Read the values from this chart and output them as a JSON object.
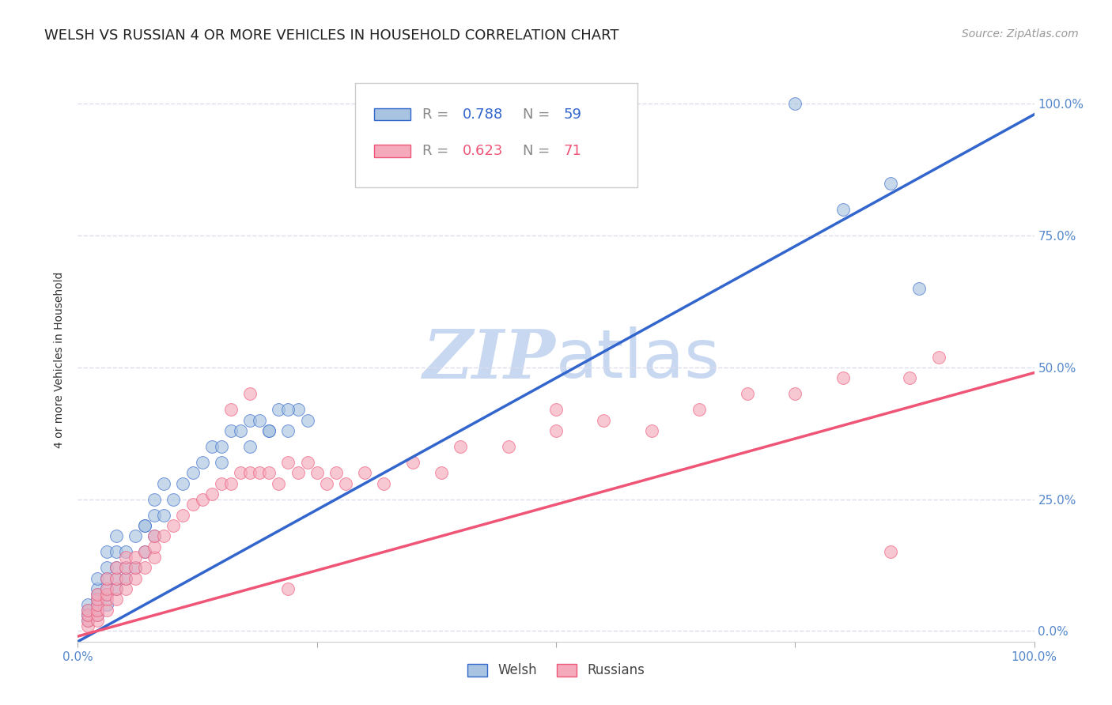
{
  "title": "WELSH VS RUSSIAN 4 OR MORE VEHICLES IN HOUSEHOLD CORRELATION CHART",
  "source": "Source: ZipAtlas.com",
  "ylabel": "4 or more Vehicles in Household",
  "welsh_R": 0.788,
  "welsh_N": 59,
  "russian_R": 0.623,
  "russian_N": 71,
  "welsh_color": "#A8C4E0",
  "russian_color": "#F4AABB",
  "welsh_line_color": "#3366CC",
  "russian_line_color": "#EE5577",
  "watermark_zip_color": "#C8D8F0",
  "watermark_atlas_color": "#C8D8F0",
  "title_fontsize": 13,
  "source_fontsize": 10,
  "legend_fontsize": 13,
  "tick_color": "#5588CC",
  "grid_color": "#DDDDEE",
  "background_color": "#FFFFFF",
  "xlim": [
    0,
    100
  ],
  "ylim": [
    -2,
    105
  ],
  "welsh_x": [
    1,
    1,
    1,
    1,
    1,
    2,
    2,
    2,
    2,
    2,
    2,
    2,
    3,
    3,
    3,
    3,
    3,
    3,
    4,
    4,
    4,
    4,
    4,
    5,
    5,
    5,
    6,
    6,
    7,
    7,
    8,
    8,
    9,
    10,
    11,
    12,
    13,
    14,
    15,
    16,
    17,
    18,
    19,
    20,
    21,
    22,
    23,
    24,
    7,
    8,
    9,
    20,
    15,
    18,
    22,
    75,
    80,
    85,
    88
  ],
  "welsh_y": [
    2,
    3,
    3,
    4,
    5,
    3,
    4,
    5,
    6,
    7,
    8,
    10,
    5,
    7,
    8,
    10,
    12,
    15,
    8,
    10,
    12,
    15,
    18,
    10,
    12,
    15,
    12,
    18,
    15,
    20,
    18,
    22,
    22,
    25,
    28,
    30,
    32,
    35,
    35,
    38,
    38,
    40,
    40,
    38,
    42,
    38,
    42,
    40,
    20,
    25,
    28,
    38,
    32,
    35,
    42,
    100,
    80,
    85,
    65
  ],
  "russian_x": [
    1,
    1,
    1,
    1,
    2,
    2,
    2,
    2,
    2,
    2,
    3,
    3,
    3,
    3,
    3,
    4,
    4,
    4,
    4,
    5,
    5,
    5,
    5,
    6,
    6,
    6,
    7,
    7,
    8,
    8,
    8,
    9,
    10,
    11,
    12,
    13,
    14,
    15,
    16,
    17,
    18,
    19,
    20,
    21,
    22,
    23,
    24,
    25,
    26,
    27,
    28,
    30,
    32,
    35,
    38,
    40,
    45,
    50,
    55,
    60,
    65,
    70,
    75,
    80,
    85,
    87,
    90,
    16,
    18,
    22,
    50
  ],
  "russian_y": [
    1,
    2,
    3,
    4,
    2,
    3,
    4,
    5,
    6,
    7,
    4,
    6,
    7,
    8,
    10,
    6,
    8,
    10,
    12,
    8,
    10,
    12,
    14,
    10,
    12,
    14,
    12,
    15,
    14,
    16,
    18,
    18,
    20,
    22,
    24,
    25,
    26,
    28,
    28,
    30,
    30,
    30,
    30,
    28,
    32,
    30,
    32,
    30,
    28,
    30,
    28,
    30,
    28,
    32,
    30,
    35,
    35,
    38,
    40,
    38,
    42,
    45,
    45,
    48,
    15,
    48,
    52,
    42,
    45,
    8,
    42
  ]
}
